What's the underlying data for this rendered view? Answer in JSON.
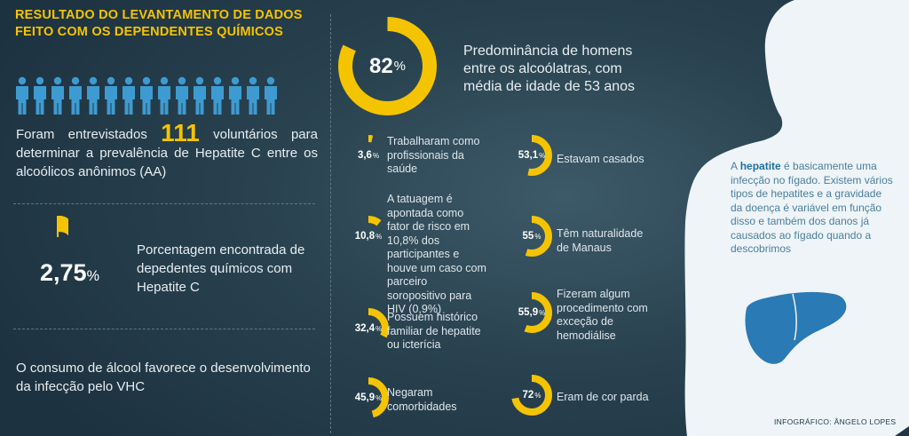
{
  "title": [
    "RESULTADO DO LEVANTAMENTO DE DADOS",
    "FEITO COM OS DEPENDENTES QUÍMICOS"
  ],
  "colors": {
    "accent": "#f5c400",
    "ring_bg": "#2a4351",
    "liver": "#2a7ab5"
  },
  "people": {
    "count": 15,
    "icon": "person-icon"
  },
  "intro": {
    "before": "Foram entrevistados ",
    "number": "111",
    "after": " voluntários para determinar a prevalência de Hepatite C entre os alcoólicos anônimos (AA)"
  },
  "hepc": {
    "value": "2,75",
    "symbol": "%",
    "text": "Porcentagem encontrada de depedentes químicos com Hepatite C"
  },
  "alcohol_note": "O consumo de álcool favorece o desenvolvimento da infecção pelo VHC",
  "main_stat": {
    "value": "82",
    "symbol": "%",
    "fraction": 0.82,
    "text": "Predominância de homens entre os alcoólatras, com média de idade de 53 anos"
  },
  "stats": [
    {
      "value": "3,6",
      "symbol": "%",
      "fraction": 0.036,
      "text": "Trabalharam como profissionais da saúde"
    },
    {
      "value": "53,1",
      "symbol": "%",
      "fraction": 0.531,
      "text": "Estavam casados"
    },
    {
      "value": "10,8",
      "symbol": "%",
      "fraction": 0.108,
      "text": "A tatuagem é apontada como fator de risco em 10,8% dos participantes e houve um caso com parceiro soropositivo para HIV (0,9%)"
    },
    {
      "value": "55",
      "symbol": "%",
      "fraction": 0.55,
      "text": "Têm naturalidade de Manaus"
    },
    {
      "value": "32,4",
      "symbol": "%",
      "fraction": 0.324,
      "text": "Possuem histórico familiar de hepatite ou icterícia"
    },
    {
      "value": "55,9",
      "symbol": "%",
      "fraction": 0.559,
      "text": "Fizeram algum procedimento com exceção de hemodiálise"
    },
    {
      "value": "45,9",
      "symbol": "%",
      "fraction": 0.459,
      "text": "Negaram comorbidades"
    },
    {
      "value": "72",
      "symbol": "%",
      "fraction": 0.72,
      "text": "Eram de cor parda"
    }
  ],
  "body_note": {
    "before": "A ",
    "bold": "hepatite",
    "after": " é basicamente uma infecção no fígado. Existem vários tipos de hepatites e a gravidade da doença é variável em função disso e também dos danos já causados ao fígado quando a descobrimos"
  },
  "credit": "INFOGRÁFICO: ÂNGELO LOPES"
}
